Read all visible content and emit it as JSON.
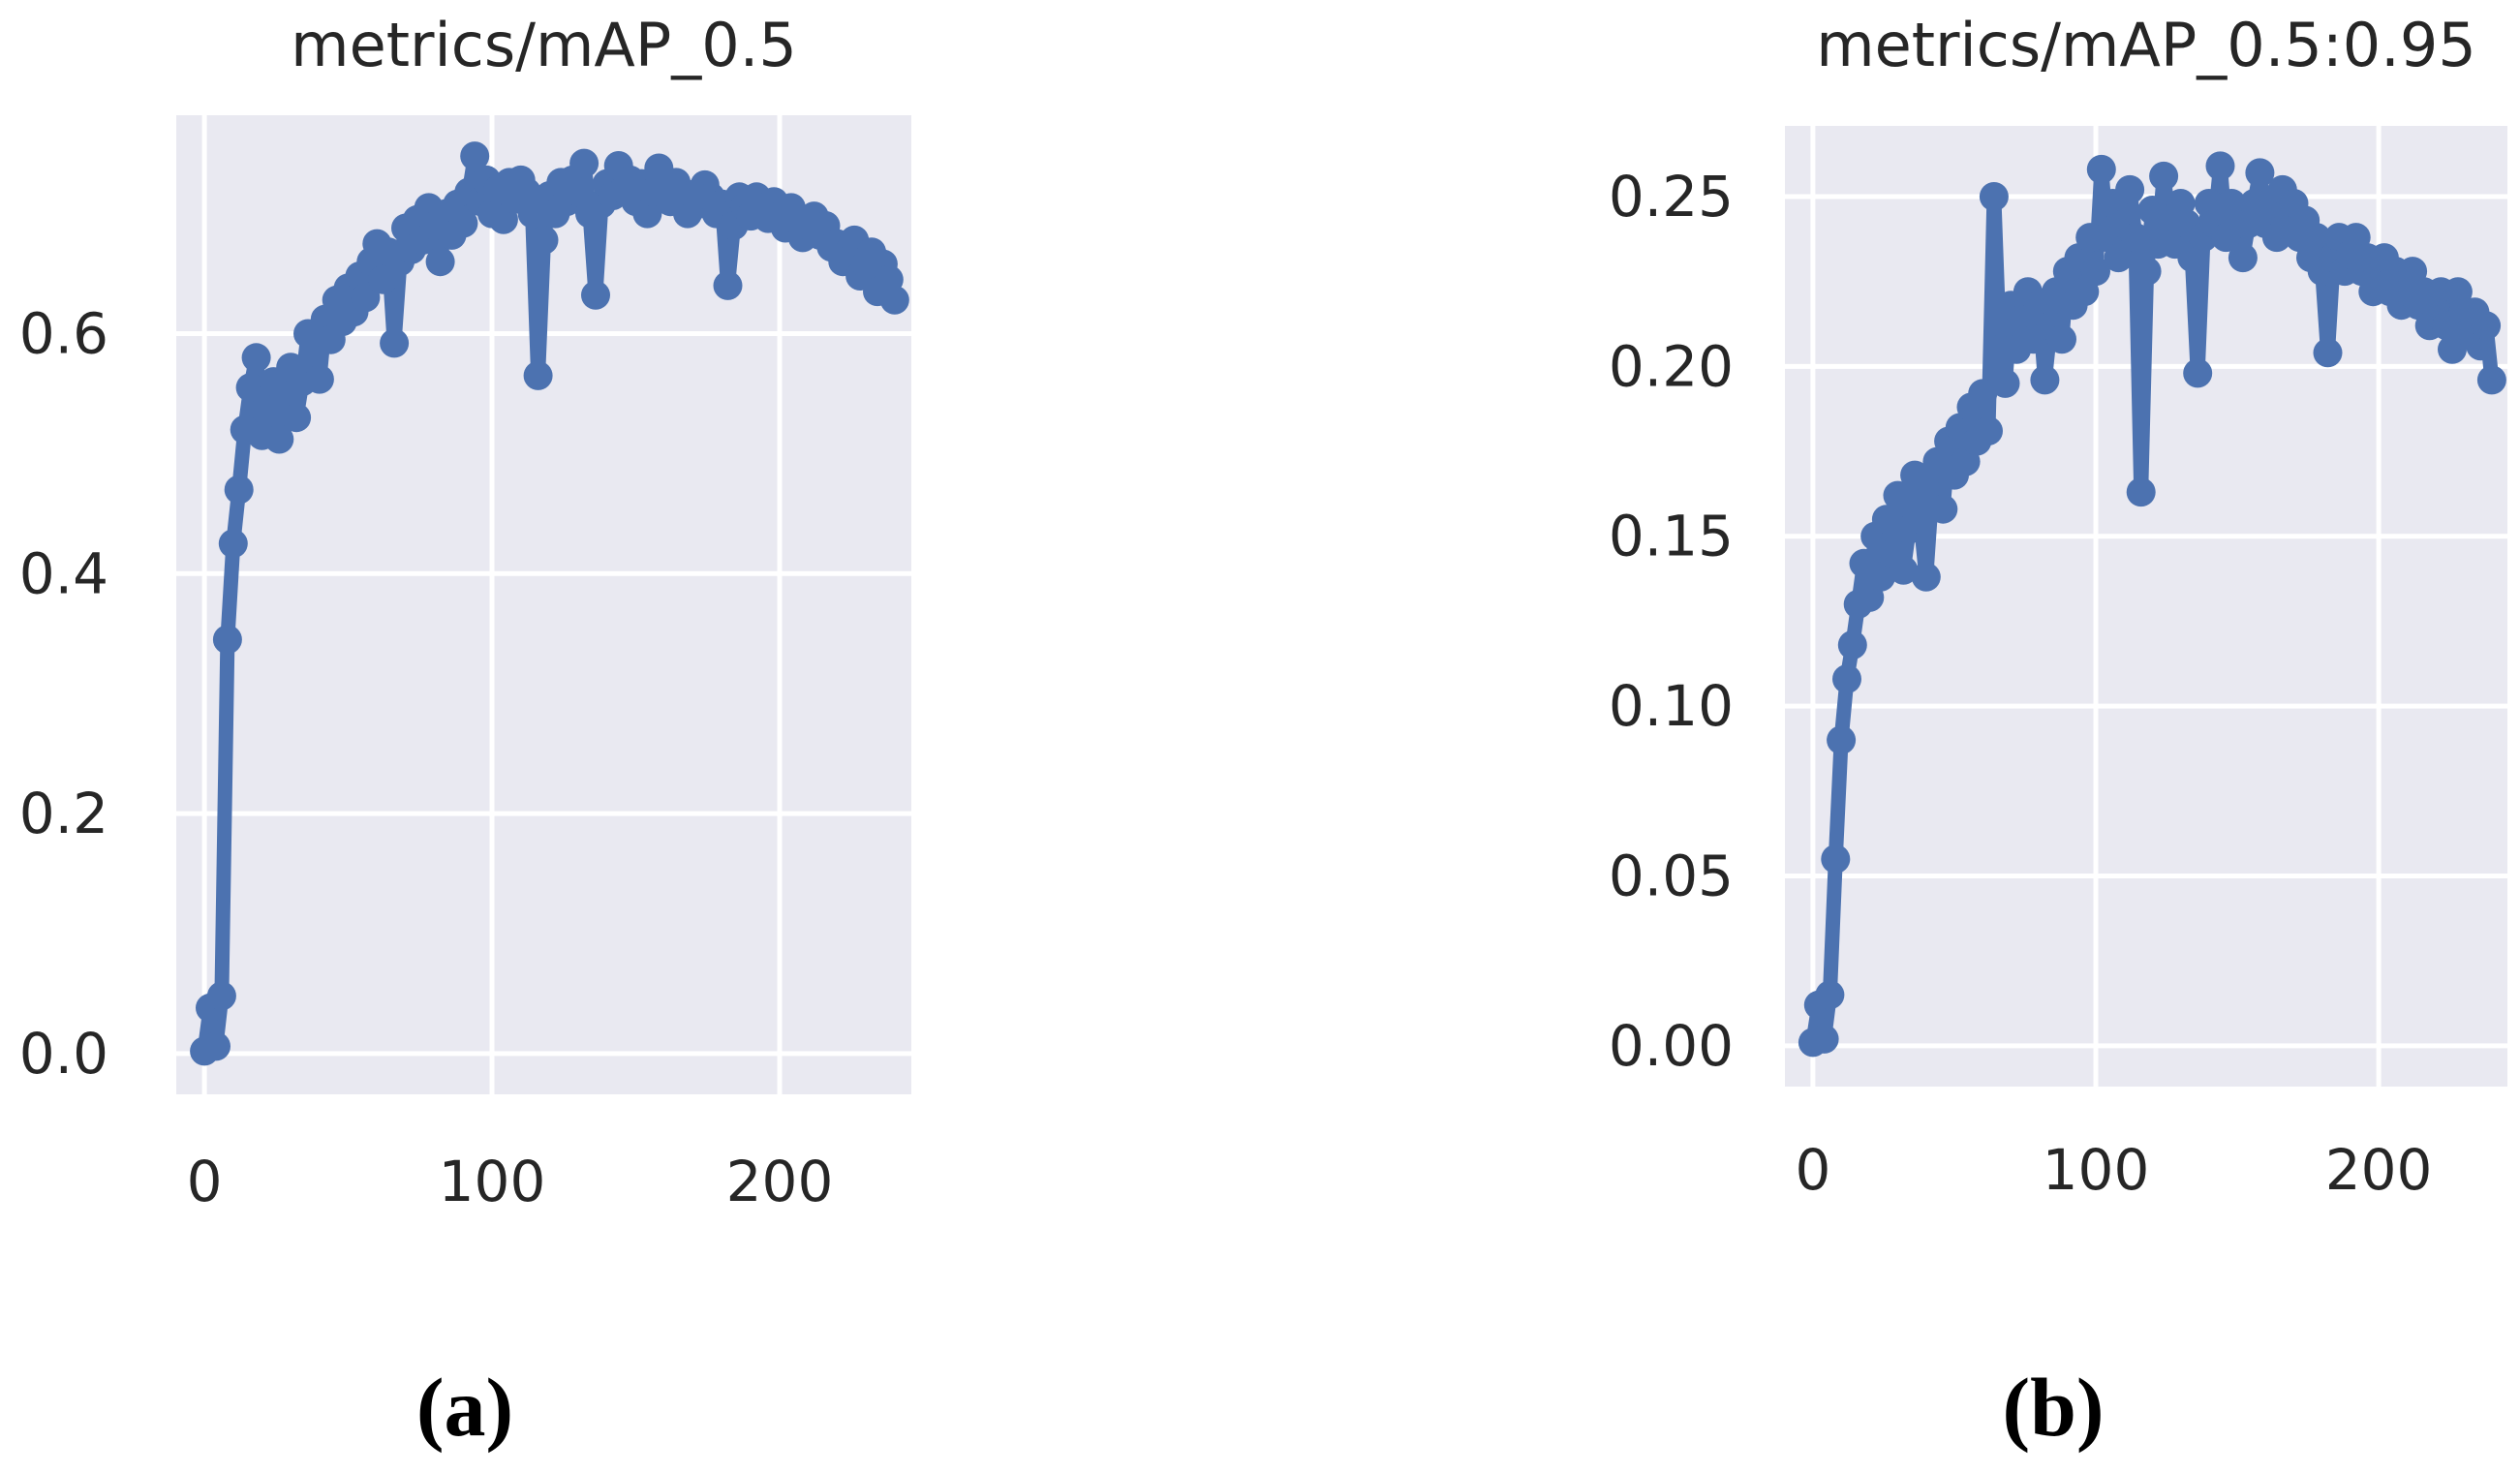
{
  "figure": {
    "captions": [
      {
        "label": "(a)"
      },
      {
        "label": "(b)"
      }
    ]
  },
  "colors": {
    "series": "#4c72b0",
    "plot_bg": "#e9e9f1",
    "grid": "#ffffff",
    "text": "#262626",
    "page_bg": "#ffffff"
  },
  "chart_data": [
    {
      "id": "a",
      "type": "line",
      "title": "metrics/mAP_0.5",
      "xlabel": "",
      "ylabel": "",
      "grid": true,
      "legend": null,
      "xlim": [
        -9.8,
        245.8
      ],
      "ylim": [
        -0.034,
        0.782
      ],
      "x_ticks": [
        0,
        100,
        200
      ],
      "x_tick_labels": [
        "0",
        "100",
        "200"
      ],
      "y_ticks": [
        0.0,
        0.2,
        0.4,
        0.6
      ],
      "y_tick_labels": [
        "0.0",
        "0.2",
        "0.4",
        "0.6"
      ],
      "x": [
        0,
        2,
        4,
        6,
        8,
        10,
        12,
        14,
        16,
        18,
        20,
        22,
        24,
        26,
        28,
        30,
        32,
        34,
        36,
        38,
        40,
        42,
        44,
        46,
        48,
        50,
        52,
        54,
        56,
        58,
        60,
        62,
        64,
        66,
        68,
        70,
        72,
        74,
        76,
        78,
        80,
        82,
        84,
        86,
        88,
        90,
        92,
        94,
        96,
        98,
        100,
        102,
        104,
        106,
        108,
        110,
        112,
        114,
        116,
        118,
        120,
        122,
        124,
        126,
        128,
        130,
        132,
        134,
        136,
        138,
        140,
        142,
        144,
        146,
        148,
        150,
        152,
        154,
        156,
        158,
        160,
        162,
        164,
        166,
        168,
        170,
        172,
        174,
        176,
        178,
        180,
        182,
        184,
        186,
        188,
        190,
        192,
        194,
        196,
        198,
        200,
        202,
        204,
        206,
        208,
        210,
        212,
        214,
        216,
        218,
        220,
        222,
        224,
        226,
        228,
        230,
        232,
        234,
        236,
        238,
        240
      ],
      "y": [
        0.002,
        0.038,
        0.006,
        0.048,
        0.345,
        0.425,
        0.47,
        0.52,
        0.555,
        0.58,
        0.515,
        0.545,
        0.56,
        0.512,
        0.548,
        0.572,
        0.53,
        0.56,
        0.6,
        0.578,
        0.562,
        0.612,
        0.595,
        0.628,
        0.61,
        0.638,
        0.618,
        0.648,
        0.63,
        0.66,
        0.675,
        0.645,
        0.668,
        0.592,
        0.66,
        0.688,
        0.67,
        0.695,
        0.678,
        0.705,
        0.69,
        0.66,
        0.7,
        0.682,
        0.708,
        0.692,
        0.718,
        0.748,
        0.71,
        0.728,
        0.7,
        0.72,
        0.695,
        0.726,
        0.712,
        0.728,
        0.718,
        0.7,
        0.565,
        0.678,
        0.715,
        0.7,
        0.726,
        0.71,
        0.728,
        0.718,
        0.742,
        0.7,
        0.632,
        0.708,
        0.725,
        0.715,
        0.74,
        0.72,
        0.728,
        0.71,
        0.725,
        0.7,
        0.718,
        0.738,
        0.726,
        0.71,
        0.726,
        0.715,
        0.7,
        0.716,
        0.708,
        0.724,
        0.714,
        0.7,
        0.708,
        0.64,
        0.69,
        0.714,
        0.706,
        0.698,
        0.714,
        0.705,
        0.696,
        0.71,
        0.698,
        0.688,
        0.705,
        0.695,
        0.68,
        0.69,
        0.698,
        0.682,
        0.69,
        0.672,
        0.675,
        0.66,
        0.668,
        0.678,
        0.648,
        0.658,
        0.668,
        0.635,
        0.658,
        0.645,
        0.628
      ]
    },
    {
      "id": "b",
      "type": "line",
      "title": "metrics/mAP_0.5:0.95",
      "xlabel": "",
      "ylabel": "",
      "grid": true,
      "legend": null,
      "xlim": [
        -9.9,
        245.5
      ],
      "ylim": [
        -0.012,
        0.2708
      ],
      "x_ticks": [
        0,
        100,
        200
      ],
      "x_tick_labels": [
        "0",
        "100",
        "200"
      ],
      "y_ticks": [
        0.0,
        0.05,
        0.1,
        0.15,
        0.2,
        0.25
      ],
      "y_tick_labels": [
        "0.00",
        "0.05",
        "0.10",
        "0.15",
        "0.20",
        "0.25"
      ],
      "x": [
        0,
        2,
        4,
        6,
        8,
        10,
        12,
        14,
        16,
        18,
        20,
        22,
        24,
        26,
        28,
        30,
        32,
        34,
        36,
        38,
        40,
        42,
        44,
        46,
        48,
        50,
        52,
        54,
        56,
        58,
        60,
        62,
        64,
        66,
        68,
        70,
        72,
        74,
        76,
        78,
        80,
        82,
        84,
        86,
        88,
        90,
        92,
        94,
        96,
        98,
        100,
        102,
        104,
        106,
        108,
        110,
        112,
        114,
        116,
        118,
        120,
        122,
        124,
        126,
        128,
        130,
        132,
        134,
        136,
        138,
        140,
        142,
        144,
        146,
        148,
        150,
        152,
        154,
        156,
        158,
        160,
        162,
        164,
        166,
        168,
        170,
        172,
        174,
        176,
        178,
        180,
        182,
        184,
        186,
        188,
        190,
        192,
        194,
        196,
        198,
        200,
        202,
        204,
        206,
        208,
        210,
        212,
        214,
        216,
        218,
        220,
        222,
        224,
        226,
        228,
        230,
        232,
        234,
        236,
        238,
        240
      ],
      "y": [
        0.001,
        0.012,
        0.002,
        0.015,
        0.055,
        0.09,
        0.108,
        0.118,
        0.13,
        0.142,
        0.132,
        0.15,
        0.138,
        0.155,
        0.145,
        0.162,
        0.14,
        0.152,
        0.168,
        0.155,
        0.138,
        0.162,
        0.172,
        0.158,
        0.178,
        0.168,
        0.182,
        0.172,
        0.188,
        0.178,
        0.192,
        0.181,
        0.25,
        0.205,
        0.195,
        0.218,
        0.205,
        0.214,
        0.222,
        0.208,
        0.218,
        0.196,
        0.212,
        0.222,
        0.208,
        0.228,
        0.218,
        0.232,
        0.222,
        0.238,
        0.228,
        0.258,
        0.238,
        0.248,
        0.232,
        0.242,
        0.252,
        0.238,
        0.163,
        0.228,
        0.246,
        0.236,
        0.256,
        0.242,
        0.236,
        0.248,
        0.242,
        0.232,
        0.198,
        0.238,
        0.248,
        0.242,
        0.259,
        0.238,
        0.248,
        0.242,
        0.232,
        0.242,
        0.248,
        0.257,
        0.242,
        0.248,
        0.238,
        0.252,
        0.242,
        0.248,
        0.238,
        0.243,
        0.232,
        0.238,
        0.228,
        0.204,
        0.232,
        0.238,
        0.228,
        0.233,
        0.238,
        0.228,
        0.232,
        0.222,
        0.228,
        0.232,
        0.222,
        0.228,
        0.218,
        0.222,
        0.228,
        0.218,
        0.222,
        0.212,
        0.218,
        0.222,
        0.212,
        0.205,
        0.222,
        0.216,
        0.21,
        0.216,
        0.206,
        0.212,
        0.196
      ]
    }
  ]
}
